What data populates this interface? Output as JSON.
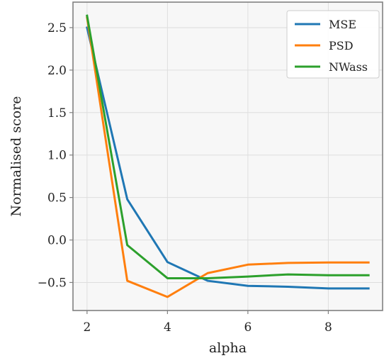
{
  "chart_data": {
    "type": "line",
    "xlabel": "alpha",
    "ylabel": "Normalised score",
    "xlim": [
      1.65,
      9.35
    ],
    "ylim": [
      -0.83,
      2.8
    ],
    "x_ticks": [
      2,
      4,
      6,
      8
    ],
    "x_tick_labels": [
      "2",
      "4",
      "6",
      "8"
    ],
    "y_ticks": [
      2.5,
      2.0,
      1.5,
      1.0,
      0.5,
      0.0,
      -0.5
    ],
    "y_tick_labels": [
      "2.5",
      "2.0",
      "1.5",
      "1.0",
      "0.5",
      "0.0",
      "−0.5"
    ],
    "grid": true,
    "legend_position": "top-right",
    "x": [
      2,
      3,
      4,
      5,
      6,
      7,
      8,
      9
    ],
    "series": [
      {
        "name": "MSE",
        "color": "#1f77b4",
        "values": [
          2.5,
          0.48,
          -0.26,
          -0.48,
          -0.54,
          -0.55,
          -0.57,
          -0.57
        ]
      },
      {
        "name": "PSD",
        "color": "#ff7f0e",
        "values": [
          2.62,
          -0.48,
          -0.67,
          -0.39,
          -0.29,
          -0.27,
          -0.265,
          -0.265
        ]
      },
      {
        "name": "NWass",
        "color": "#2ca02c",
        "values": [
          2.64,
          -0.06,
          -0.45,
          -0.45,
          -0.43,
          -0.405,
          -0.415,
          -0.415
        ]
      }
    ]
  },
  "colors": {
    "plot_background": "#f7f7f7",
    "grid": "#dedede",
    "axes": "#808080"
  }
}
